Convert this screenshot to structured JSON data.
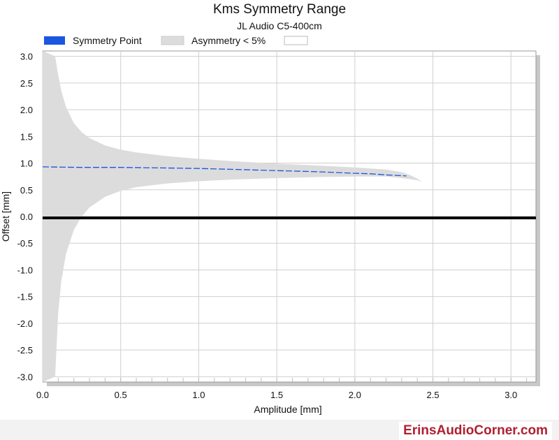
{
  "chart_data": {
    "type": "area",
    "title": "Kms Symmetry Range",
    "subtitle": "JL Audio C5-400cm",
    "xlabel": "Amplitude [mm]",
    "ylabel": "Offset [mm]",
    "xlim": [
      0,
      3.16
    ],
    "ylim": [
      -3.1,
      3.1
    ],
    "xticks": [
      "0.0",
      "0.5",
      "1.0",
      "1.5",
      "2.0",
      "2.5",
      "3.0"
    ],
    "yticks": [
      "3.0",
      "2.5",
      "2.0",
      "1.5",
      "1.0",
      "0.5",
      "0.0",
      "-0.5",
      "-1.0",
      "-1.5",
      "-2.0",
      "-2.5",
      "-3.0"
    ],
    "grid": true,
    "legend_position": "top",
    "legend": {
      "symmetry": "Symmetry Point",
      "asymmetry": "Asymmetry < 5%"
    },
    "colors": {
      "symmetry": "#1a56e0",
      "band": "#dcdcdc",
      "zero_line": "#000000"
    },
    "symmetry_point": {
      "x": [
        0.0,
        0.25,
        0.5,
        0.75,
        1.0,
        1.25,
        1.5,
        1.75,
        2.0,
        2.1,
        2.2,
        2.33
      ],
      "y": [
        0.93,
        0.92,
        0.92,
        0.91,
        0.9,
        0.88,
        0.86,
        0.84,
        0.81,
        0.8,
        0.78,
        0.76
      ]
    },
    "asymmetry_band": {
      "x": [
        0.0,
        0.08,
        0.1,
        0.12,
        0.15,
        0.2,
        0.25,
        0.3,
        0.4,
        0.5,
        0.6,
        0.8,
        1.0,
        1.2,
        1.5,
        1.8,
        2.0,
        2.2,
        2.3,
        2.35,
        2.4,
        2.43
      ],
      "upper": [
        3.1,
        3.0,
        2.65,
        2.35,
        2.05,
        1.75,
        1.58,
        1.47,
        1.33,
        1.25,
        1.2,
        1.13,
        1.08,
        1.04,
        0.99,
        0.95,
        0.92,
        0.88,
        0.83,
        0.78,
        0.71,
        0.65
      ],
      "lower": [
        -3.1,
        -3.0,
        -1.8,
        -1.2,
        -0.7,
        -0.25,
        0.0,
        0.17,
        0.37,
        0.48,
        0.55,
        0.62,
        0.66,
        0.69,
        0.72,
        0.74,
        0.75,
        0.75,
        0.72,
        0.7,
        0.68,
        0.65
      ]
    }
  },
  "footer": {
    "watermark": "ErinsAudioCorner.com"
  }
}
